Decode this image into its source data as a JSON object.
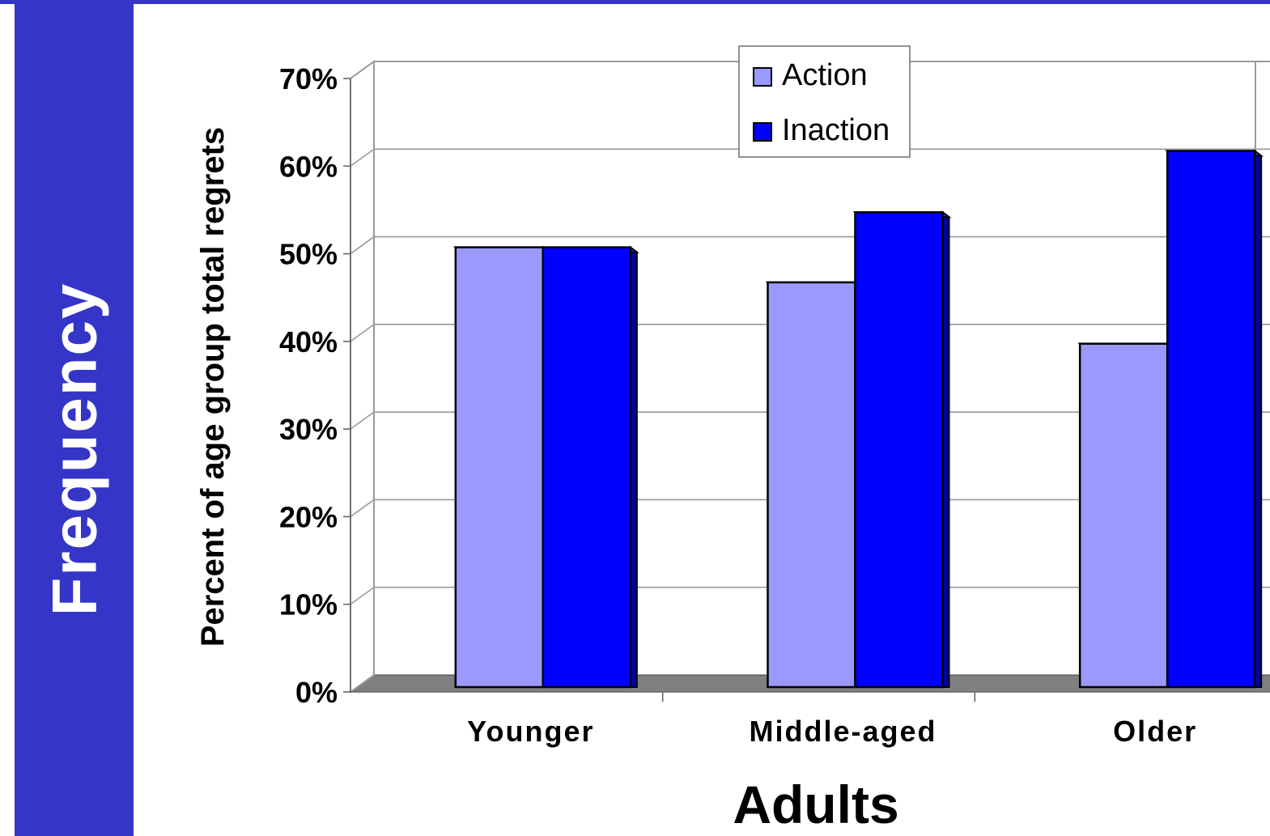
{
  "slide": {
    "side_title": "Frequency"
  },
  "colors": {
    "accent": "#3535c8",
    "action": "#9999ff",
    "inaction": "#0000ff",
    "floor": "#808080",
    "grid": "#9a9a9a"
  },
  "chart_data": {
    "type": "bar",
    "categories": [
      "Younger",
      "Middle-aged",
      "Older"
    ],
    "series": [
      {
        "name": "Action",
        "values": [
          50,
          46,
          39
        ]
      },
      {
        "name": "Inaction",
        "values": [
          50,
          54,
          61
        ]
      }
    ],
    "ylabel": "Percent of age group total regrets",
    "xlabel": "Adults",
    "ylim": [
      0,
      70
    ],
    "yticks": [
      "0%",
      "10%",
      "20%",
      "30%",
      "40%",
      "50%",
      "60%",
      "70%"
    ],
    "grid": true,
    "legend_position": "top-center",
    "style": "3d-clustered-bar"
  }
}
